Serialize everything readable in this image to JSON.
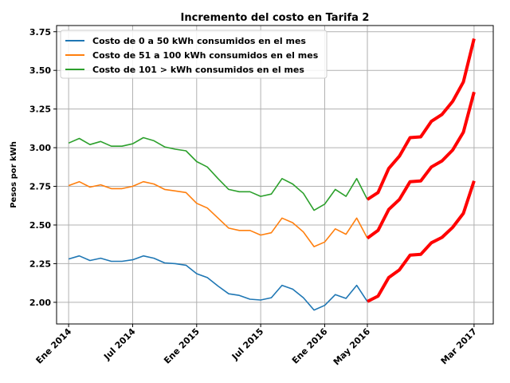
{
  "chart_data": {
    "type": "line",
    "title": "Incremento del costo en Tarifa 2",
    "ylabel": "Pesos por kWh",
    "xlabel": "",
    "ylim": [
      1.86,
      3.79
    ],
    "yticks": [
      "2.00",
      "2.25",
      "2.50",
      "2.75",
      "3.00",
      "3.25",
      "3.50",
      "3.75"
    ],
    "xticks": [
      {
        "label": "Ene 2014",
        "index": 0
      },
      {
        "label": "Jul 2014",
        "index": 6
      },
      {
        "label": "Ene 2015",
        "index": 12
      },
      {
        "label": "Jul 2015",
        "index": 18
      },
      {
        "label": "Ene 2016",
        "index": 24
      },
      {
        "label": "May 2016",
        "index": 28
      },
      {
        "label": "Mar 2017",
        "index": 38
      }
    ],
    "grid": true,
    "legend_position": "top-left",
    "series": [
      {
        "name": "Costo de 0 a 50 kWh consumidos en el mes",
        "color": "#1f77b4",
        "values": [
          2.28,
          2.3,
          2.27,
          2.285,
          2.265,
          2.265,
          2.275,
          2.3,
          2.285,
          2.255,
          2.25,
          2.24,
          2.185,
          2.16,
          2.105,
          2.055,
          2.045,
          2.02,
          2.015,
          2.03,
          2.11,
          2.085,
          2.03,
          1.95,
          1.98,
          2.05,
          2.025,
          2.11,
          2.005
        ]
      },
      {
        "name": "Costo de 51 a 100 kWh consumidos en el mes",
        "color": "#ff7f0e",
        "values": [
          2.755,
          2.78,
          2.745,
          2.76,
          2.735,
          2.735,
          2.75,
          2.78,
          2.765,
          2.73,
          2.72,
          2.71,
          2.64,
          2.61,
          2.545,
          2.48,
          2.465,
          2.465,
          2.435,
          2.45,
          2.545,
          2.515,
          2.455,
          2.36,
          2.39,
          2.475,
          2.44,
          2.545,
          2.415
        ]
      },
      {
        "name": "Costo de 101 > kWh consumidos en el mes",
        "color": "#2ca02c",
        "values": [
          3.03,
          3.06,
          3.02,
          3.04,
          3.01,
          3.01,
          3.025,
          3.065,
          3.045,
          3.005,
          2.99,
          2.98,
          2.91,
          2.875,
          2.8,
          2.73,
          2.715,
          2.715,
          2.685,
          2.7,
          2.8,
          2.765,
          2.705,
          2.595,
          2.635,
          2.73,
          2.685,
          2.8,
          2.665
        ]
      }
    ],
    "projections": {
      "color": "#ff0000",
      "start_index": 28,
      "lines": [
        [
          2.005,
          2.04,
          2.16,
          2.21,
          2.305,
          2.31,
          2.385,
          2.42,
          2.485,
          2.575,
          2.785
        ],
        [
          2.415,
          2.465,
          2.6,
          2.665,
          2.78,
          2.785,
          2.875,
          2.915,
          2.985,
          3.1,
          3.36
        ],
        [
          2.665,
          2.71,
          2.865,
          2.945,
          3.065,
          3.07,
          3.17,
          3.215,
          3.3,
          3.425,
          3.705
        ]
      ]
    }
  }
}
